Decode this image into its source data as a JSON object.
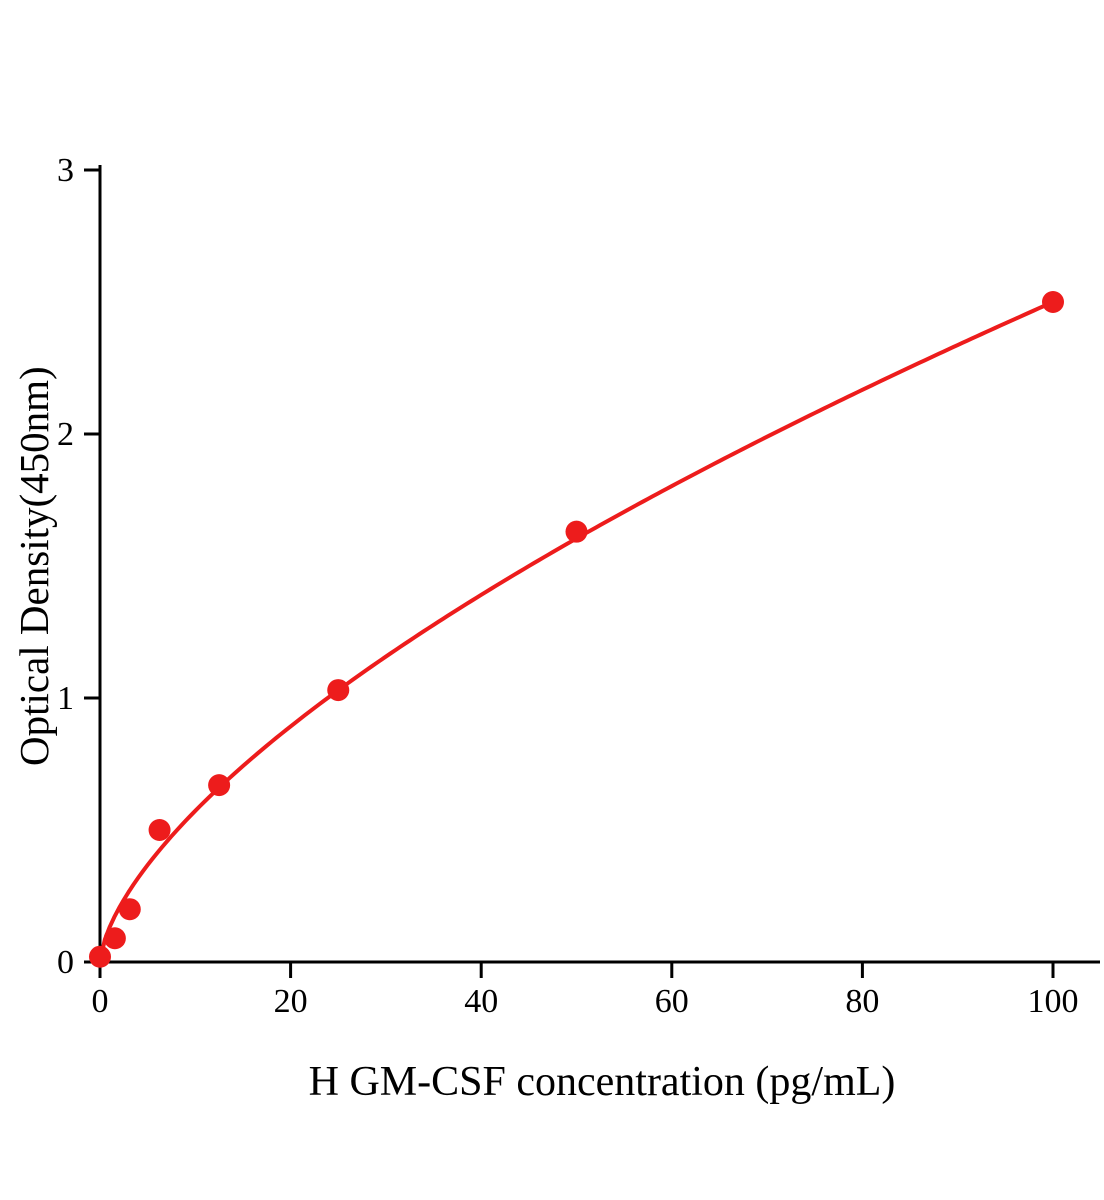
{
  "chart_data": {
    "type": "scatter",
    "title": "",
    "xlabel": "H GM-CSF concentration (pg/mL)",
    "ylabel": "Optical Density(450nm)",
    "x_ticks": [
      0,
      20,
      40,
      60,
      80,
      100
    ],
    "y_ticks": [
      0,
      1,
      2,
      3
    ],
    "xlim": [
      0,
      105
    ],
    "ylim": [
      0,
      3
    ],
    "grid": false,
    "legend": "none",
    "points": [
      {
        "x": 0,
        "y": 0.02
      },
      {
        "x": 1.56,
        "y": 0.09
      },
      {
        "x": 3.125,
        "y": 0.2
      },
      {
        "x": 6.25,
        "y": 0.5
      },
      {
        "x": 12.5,
        "y": 0.67
      },
      {
        "x": 25,
        "y": 1.03
      },
      {
        "x": 50,
        "y": 1.63
      },
      {
        "x": 100,
        "y": 2.5
      }
    ],
    "fit_curve": {
      "model": "power",
      "a": 0.1312,
      "b": 0.64,
      "x_start": 0,
      "x_end": 100
    },
    "point_color": "#ed1c1c",
    "line_color": "#ed1c1c",
    "axis_color": "#000000"
  }
}
